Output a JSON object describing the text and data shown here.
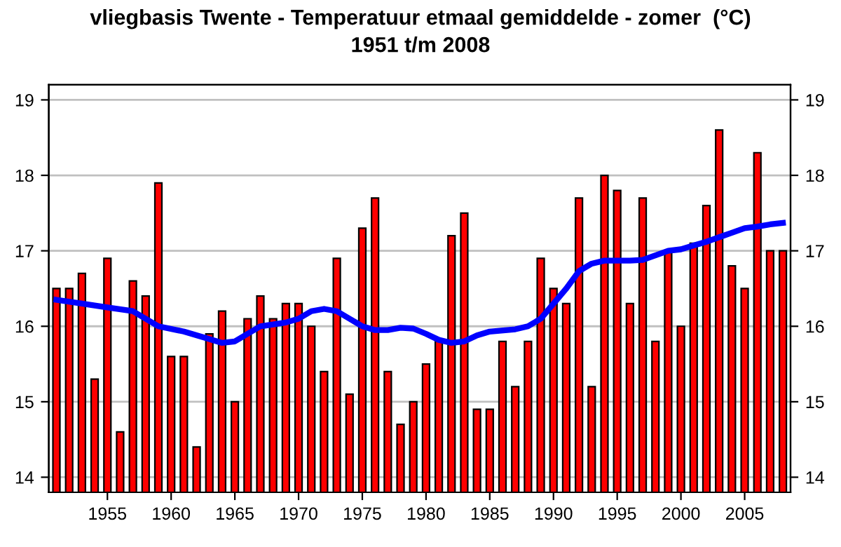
{
  "chart_data": {
    "type": "bar",
    "title": "vliegbasis Twente - Temperatuur etmaal gemiddelde - zomer  (°C)",
    "subtitle": "1951 t/m 2008",
    "x": [
      1951,
      1952,
      1953,
      1954,
      1955,
      1956,
      1957,
      1958,
      1959,
      1960,
      1961,
      1962,
      1963,
      1964,
      1965,
      1966,
      1967,
      1968,
      1969,
      1970,
      1971,
      1972,
      1973,
      1974,
      1975,
      1976,
      1977,
      1978,
      1979,
      1980,
      1981,
      1982,
      1983,
      1984,
      1985,
      1986,
      1987,
      1988,
      1989,
      1990,
      1991,
      1992,
      1993,
      1994,
      1995,
      1996,
      1997,
      1998,
      1999,
      2000,
      2001,
      2002,
      2003,
      2004,
      2005,
      2006,
      2007,
      2008
    ],
    "series": [
      {
        "color": "#ff0000",
        "values": [
          16.5,
          16.5,
          16.7,
          15.3,
          16.9,
          14.6,
          16.6,
          16.4,
          17.9,
          15.6,
          15.6,
          14.4,
          15.9,
          16.2,
          15.0,
          16.1,
          16.4,
          16.1,
          16.3,
          16.3,
          16.0,
          15.4,
          16.9,
          15.1,
          17.3,
          17.7,
          15.4,
          14.7,
          15.0,
          15.5,
          15.8,
          17.2,
          17.5,
          14.9,
          14.9,
          15.8,
          15.2,
          15.8,
          16.9,
          16.5,
          16.3,
          17.7,
          15.2,
          18.0,
          17.8,
          16.3,
          17.7,
          15.8,
          17.0,
          16.0,
          17.1,
          17.6,
          18.6,
          16.8,
          16.5,
          18.3,
          17.0,
          17.0
        ]
      },
      {
        "type": "line",
        "color": "#0000ff",
        "x": [
          1951,
          1953,
          1955,
          1957,
          1958,
          1959,
          1961,
          1963,
          1964,
          1965,
          1966,
          1967,
          1969,
          1970,
          1971,
          1972,
          1973,
          1974,
          1975,
          1976,
          1977,
          1978,
          1979,
          1980,
          1981,
          1982,
          1983,
          1984,
          1985,
          1987,
          1988,
          1989,
          1990,
          1991,
          1992,
          1993,
          1994,
          1996,
          1997,
          1998,
          1999,
          2000,
          2001,
          2002,
          2003,
          2004,
          2005,
          2006,
          2007,
          2008
        ],
        "values": [
          16.35,
          16.3,
          16.25,
          16.2,
          16.1,
          16.0,
          15.93,
          15.83,
          15.78,
          15.8,
          15.9,
          16.0,
          16.05,
          16.1,
          16.2,
          16.23,
          16.2,
          16.1,
          16.0,
          15.95,
          15.95,
          15.98,
          15.97,
          15.9,
          15.82,
          15.78,
          15.8,
          15.88,
          15.93,
          15.96,
          16.0,
          16.1,
          16.3,
          16.5,
          16.73,
          16.83,
          16.87,
          16.87,
          16.88,
          16.94,
          17.0,
          17.02,
          17.07,
          17.12,
          17.18,
          17.24,
          17.3,
          17.32,
          17.35,
          17.37
        ]
      }
    ],
    "xlim": [
      1950.4,
      2008.6
    ],
    "xticks": [
      1955,
      1960,
      1965,
      1970,
      1975,
      1980,
      1985,
      1990,
      1995,
      2000,
      2005
    ],
    "ylim": [
      13.8,
      19.2
    ],
    "yticks": [
      14,
      15,
      16,
      17,
      18,
      19
    ],
    "y2lim": [
      13.8,
      19.2
    ],
    "y2ticks": [
      14,
      15,
      16,
      17,
      18,
      19
    ],
    "grid": "y",
    "legend": false
  }
}
